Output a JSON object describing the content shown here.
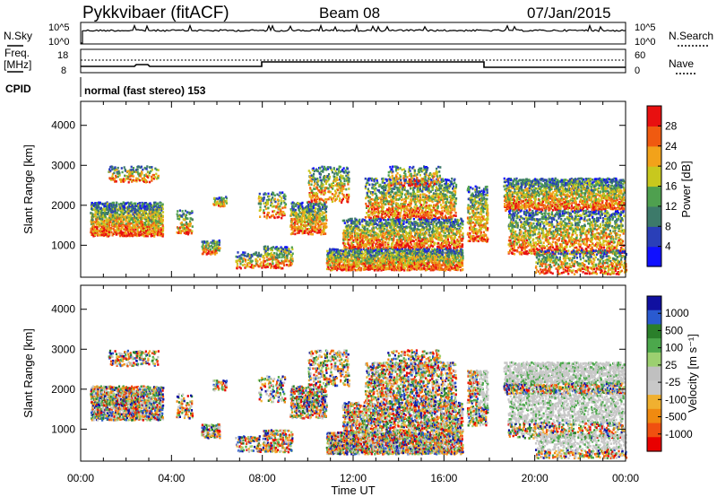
{
  "header": {
    "site": "Pykkvibaer (fitACF)",
    "beam": "Beam 08",
    "date": "07/Jan/2015"
  },
  "panels": {
    "nsky": {
      "label": "N.Sky",
      "tick_top": "10^5",
      "tick_bottom": "10^0"
    },
    "nsearch": {
      "label": "N.Search",
      "tick_top": "10^5",
      "tick_bottom": "10^0"
    },
    "freq": {
      "label_line1": "Freq.",
      "label_line2": "[MHz]",
      "tick_top": "18",
      "tick_bottom": "8"
    },
    "nave": {
      "label": "Nave",
      "tick_top": "60",
      "tick_bottom": "0"
    },
    "cpid": {
      "label": "CPID",
      "text": "normal (fast stereo) 153"
    }
  },
  "colors": {
    "power_scale": [
      "#1010ff",
      "#2a3fb8",
      "#3d7a6a",
      "#4fa04f",
      "#c8c81e",
      "#f2a21a",
      "#f05a10",
      "#e81010"
    ],
    "velocity_scale": [
      "#e80000",
      "#f05010",
      "#f08a10",
      "#f0b030",
      "#c8c8c8",
      "#c0c0c0",
      "#9cd070",
      "#4ca84c",
      "#2a7f2a",
      "#2a5ad0",
      "#1010a0"
    ]
  },
  "chart_data": [
    {
      "type": "heatmap",
      "title": "",
      "ylabel": "Slant Range [km]",
      "xlabel": "",
      "y_ticks": [
        "1000",
        "2000",
        "3000",
        "4000"
      ],
      "ylim": [
        200,
        4600
      ],
      "x_ticks": [
        "00:00",
        "04:00",
        "08:00",
        "12:00",
        "16:00",
        "20:00",
        "00:00"
      ],
      "xlim_hours": [
        0,
        24
      ],
      "colorbar": {
        "label": "Power [dB]",
        "ticks": [
          "4",
          "8",
          "12",
          "16",
          "20",
          "24",
          "28"
        ],
        "range": [
          0,
          30
        ]
      }
    },
    {
      "type": "heatmap",
      "title": "",
      "ylabel": "Slant Range [km]",
      "xlabel": "Time UT",
      "y_ticks": [
        "1000",
        "2000",
        "3000",
        "4000"
      ],
      "ylim": [
        200,
        4600
      ],
      "x_ticks": [
        "00:00",
        "04:00",
        "08:00",
        "12:00",
        "16:00",
        "20:00",
        "00:00"
      ],
      "xlim_hours": [
        0,
        24
      ],
      "colorbar": {
        "label": "Velocity [m s⁻¹]",
        "ticks": [
          "1000",
          "500",
          "100",
          "25",
          "-25",
          "-100",
          "-500",
          "-1000"
        ]
      }
    }
  ]
}
